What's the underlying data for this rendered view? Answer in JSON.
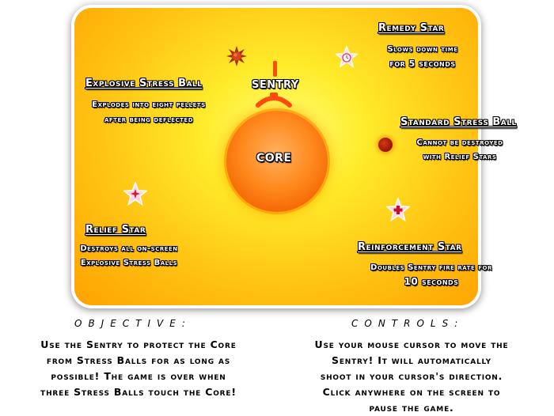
{
  "labels": {
    "sentry": "SENTRY",
    "core": "CORE"
  },
  "remedy": {
    "title": "Remedy Star",
    "line1": "Slows down time",
    "line2": "for 5 seconds"
  },
  "explosive": {
    "title": "Explosive Stress Ball",
    "line1": "Explodes into eight pellets",
    "line2": "after being deflected"
  },
  "standard": {
    "title": "Standard Stress Ball",
    "line1": "Cannot be destroyed",
    "line2": "with Relief Stars"
  },
  "relief": {
    "title": "Relief Star",
    "line1": "Destroys all on-screen",
    "line2": "Explosive Stress Balls"
  },
  "reinforcement": {
    "title": "Reinforcement Star",
    "line1": "Doubles Sentry fire rate for",
    "line2": "10 seconds"
  },
  "objective": {
    "heading": "OBJECTIVE:",
    "line1": "Use the Sentry to protect the Core",
    "line2": "from Stress Balls for as long as",
    "line3": "possible! The game is over when",
    "line4": "three Stress Balls touch the Core!"
  },
  "controls": {
    "heading": "CONTROLS:",
    "line1": "Use your mouse cursor to move the",
    "line2": "Sentry! It will automatically",
    "line3": "shoot in your cursor's direction.",
    "line4": "Click anywhere on the screen to",
    "line5": "pause the game."
  },
  "colors": {
    "panel_center": "#ffff7a",
    "panel_edge": "#ffa200",
    "core": "#ff8a1e",
    "sentry": "#ff4a10",
    "stress_ball": "#a01806",
    "star_fill": "#ffd6e8"
  },
  "icons": {
    "remedy": "clock-star-icon",
    "explosive": "spiky-ball-icon",
    "standard": "red-ball-icon",
    "relief": "star-burst-icon",
    "reinforcement": "plus-star-icon"
  }
}
